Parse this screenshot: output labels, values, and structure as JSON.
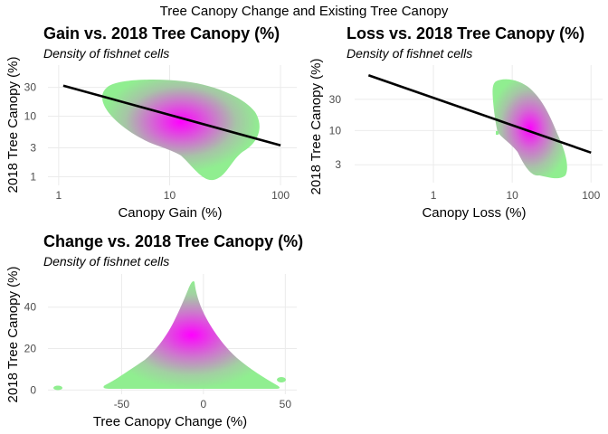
{
  "figure_title": "Tree Canopy Change and Existing Tree Canopy",
  "colors": {
    "density_low": "#90ee90",
    "density_high": "#ff00ff",
    "trend_line": "#000000",
    "grid": "#ebebeb"
  },
  "chart_data": [
    {
      "type": "density",
      "title": "Gain vs. 2018 Tree Canopy (%)",
      "subtitle": "Density of fishnet cells",
      "xlabel": "Canopy Gain (%)",
      "ylabel": "2018 Tree Canopy (%)",
      "x_scale": "log10",
      "y_scale": "log10",
      "x_ticks": [
        1,
        10,
        100
      ],
      "x_tick_labels": [
        "1",
        "10",
        "100"
      ],
      "y_ticks": [
        1,
        3,
        10,
        30
      ],
      "y_tick_labels": [
        "1",
        "3",
        "10",
        "30"
      ],
      "xlim": [
        0.8,
        140
      ],
      "ylim": [
        0.72,
        70
      ],
      "grid": true,
      "density_peak": {
        "x": 13,
        "y": 12
      },
      "trend_line": {
        "x": [
          1.1,
          100
        ],
        "y": [
          32,
          3.3
        ]
      }
    },
    {
      "type": "density",
      "title": "Loss vs. 2018 Tree Canopy (%)",
      "subtitle": "Density of fishnet cells",
      "xlabel": "Canopy Loss (%)",
      "ylabel": "2018 Tree Canopy (%)",
      "x_scale": "log10",
      "y_scale": "log10",
      "x_ticks": [
        1,
        10,
        100
      ],
      "x_tick_labels": [
        "1",
        "10",
        "100"
      ],
      "y_ticks": [
        3,
        10,
        30
      ],
      "y_tick_labels": [
        "3",
        "10",
        "30"
      ],
      "xlim": [
        0.1,
        140
      ],
      "ylim": [
        1.6,
        100
      ],
      "grid": true,
      "density_peak": {
        "x": 24,
        "y": 13
      },
      "trend_line": {
        "x": [
          0.15,
          100
        ],
        "y": [
          70,
          4.6
        ]
      }
    },
    {
      "type": "density",
      "title": "Change vs. 2018 Tree Canopy (%)",
      "subtitle": "Density of fishnet cells",
      "xlabel": "Tree Canopy Change (%)",
      "ylabel": "2018 Tree Canopy (%)",
      "x_scale": "linear",
      "y_scale": "linear",
      "x_ticks": [
        -50,
        0,
        50
      ],
      "x_tick_labels": [
        "-50",
        "0",
        "50"
      ],
      "y_ticks": [
        0,
        20,
        40
      ],
      "y_tick_labels": [
        "0",
        "20",
        "40"
      ],
      "xlim": [
        -95,
        57
      ],
      "ylim": [
        -2,
        56
      ],
      "grid": true,
      "density_peak": {
        "x": -11,
        "y": 11
      }
    }
  ]
}
